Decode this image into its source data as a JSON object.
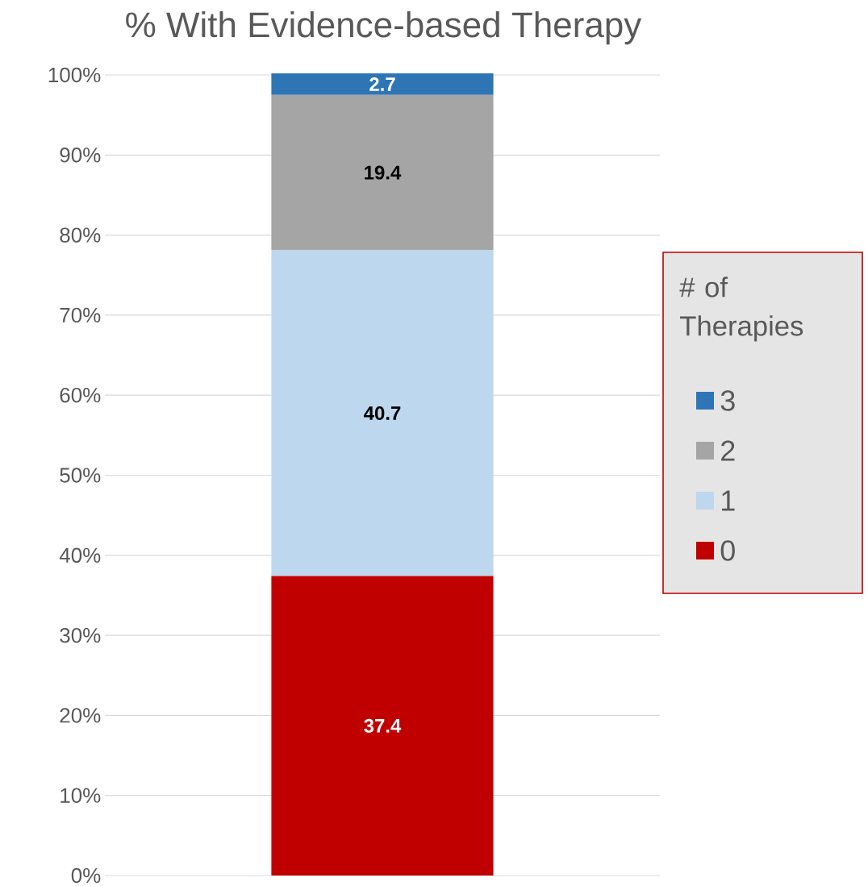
{
  "chart_data": {
    "type": "bar",
    "title": "% With Evidence-based Therapy",
    "categories": [
      null
    ],
    "series": [
      {
        "name": "0",
        "color": "#c00000",
        "values": [
          37.4
        ]
      },
      {
        "name": "1",
        "color": "#bdd7ee",
        "values": [
          40.7
        ]
      },
      {
        "name": "2",
        "color": "#a5a5a5",
        "values": [
          19.4
        ]
      },
      {
        "name": "3",
        "color": "#2e75b6",
        "values": [
          2.7
        ]
      }
    ],
    "stacked": true,
    "data_labels": true,
    "grid": "y",
    "legend": "right",
    "legend_title": "# of Therapies",
    "ylim": [
      0,
      100.2
    ],
    "yticks": [
      {
        "value": 0,
        "label": "0%"
      },
      {
        "value": 10,
        "label": "10%"
      },
      {
        "value": 20,
        "label": "20%"
      },
      {
        "value": 30,
        "label": "30%"
      },
      {
        "value": 40,
        "label": "40%"
      },
      {
        "value": 50,
        "label": "50%"
      },
      {
        "value": 60,
        "label": "60%"
      },
      {
        "value": 70,
        "label": "70%"
      },
      {
        "value": 80,
        "label": "80%"
      },
      {
        "value": 90,
        "label": "90%"
      },
      {
        "value": 100,
        "label": "100%"
      }
    ]
  }
}
